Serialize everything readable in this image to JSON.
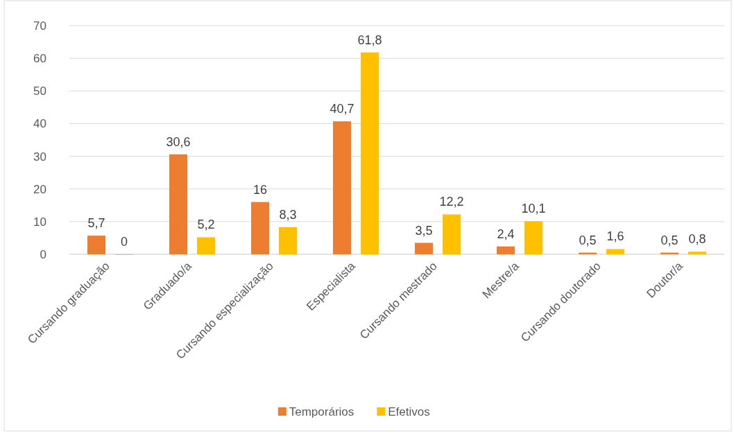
{
  "chart_data": {
    "type": "bar",
    "categories": [
      "Cursando graduação",
      "Graduado/a",
      "Cursando especialização",
      "Especialista",
      "Cursando mestrado",
      "Mestre/a",
      "Cursando doutorado",
      "Doutor/a"
    ],
    "series": [
      {
        "name": "Temporários",
        "color": "#ed7d31",
        "values": [
          5.7,
          30.6,
          16,
          40.7,
          3.5,
          2.4,
          0.5,
          0.5
        ],
        "value_labels": [
          "5,7",
          "30,6",
          "16",
          "40,7",
          "3,5",
          "2,4",
          "0,5",
          "0,5"
        ]
      },
      {
        "name": "Efetivos",
        "color": "#ffc000",
        "values": [
          0,
          5.2,
          8.3,
          61.8,
          12.2,
          10.1,
          1.6,
          0.8
        ],
        "value_labels": [
          "0",
          "5,2",
          "8,3",
          "61,8",
          "12,2",
          "10,1",
          "1,6",
          "0,8"
        ]
      }
    ],
    "ylim": [
      0,
      70
    ],
    "yticks": [
      0,
      10,
      20,
      30,
      40,
      50,
      60,
      70
    ],
    "grid": "y",
    "legend": "bottom"
  }
}
